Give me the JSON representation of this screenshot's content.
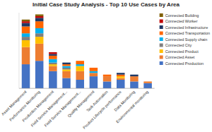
{
  "chart_data": {
    "type": "bar",
    "stacked": true,
    "title": "Initial Case Study Analysis - Top 10 Use Cases by Area",
    "categories": [
      "Asset Management",
      "Performance Monitoring",
      "Production Management",
      "Field Service Management...",
      "Field Service Management...",
      "Quality Management",
      "Task Automation",
      "Product Lifecycle performance",
      "Data Monitoring",
      "Environmental monitoring"
    ],
    "series": [
      {
        "name": "Connected Production",
        "color": "#4472C4",
        "values": [
          14,
          16,
          10,
          6,
          5,
          7,
          4,
          5,
          4,
          3
        ]
      },
      {
        "name": "Connected Asset",
        "color": "#ED7D31",
        "values": [
          10,
          10,
          3,
          4,
          5,
          2,
          3,
          1,
          3,
          1
        ]
      },
      {
        "name": "Connected Product",
        "color": "#FFC000",
        "values": [
          4,
          4,
          1,
          1,
          3,
          0,
          0,
          1,
          0,
          0
        ]
      },
      {
        "name": "Connected City",
        "color": "#808080",
        "values": [
          2,
          2,
          1,
          1,
          0,
          0,
          0,
          0,
          0,
          0
        ]
      },
      {
        "name": "Connected Supply chain",
        "color": "#00B0F0",
        "values": [
          2,
          3,
          2,
          1,
          1,
          1,
          0,
          0,
          0,
          0
        ]
      },
      {
        "name": "Connected Transportation",
        "color": "#FF6600",
        "values": [
          4,
          4,
          2,
          1,
          2,
          2,
          1,
          1,
          0,
          0
        ]
      },
      {
        "name": "Connected Infrastructure",
        "color": "#1F3864",
        "values": [
          2,
          2,
          1,
          1,
          0,
          0,
          0,
          1,
          1,
          0
        ]
      },
      {
        "name": "Connected Worker",
        "color": "#C00000",
        "values": [
          1,
          1,
          1,
          0,
          0,
          0,
          0,
          0,
          0,
          0
        ]
      },
      {
        "name": "Connected Building",
        "color": "#806000",
        "values": [
          1,
          1,
          0,
          0,
          0,
          0,
          0,
          0,
          0,
          0
        ]
      }
    ],
    "ylim": [
      0,
      44
    ],
    "legend": "right",
    "tick_labels": "x"
  }
}
